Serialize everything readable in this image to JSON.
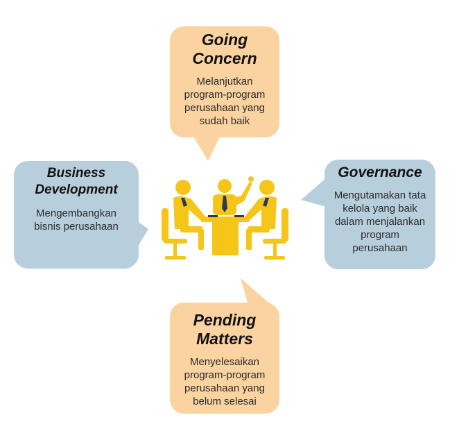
{
  "colors": {
    "orange_bubble": "#FAD3A1",
    "blue_bubble": "#B7CFDC",
    "figure_yellow": "#F5C518",
    "tie_dark": "#2E3A4A"
  },
  "center_icon": "business-meeting-icon",
  "nodes": {
    "top": {
      "title_line1": "Going",
      "title_line2": "Concern",
      "desc": [
        "Melanjutkan",
        "program-program",
        "perusahaan yang",
        "sudah baik"
      ]
    },
    "left": {
      "title_line1": "Business",
      "title_line2": "Development",
      "desc": [
        "Mengembangkan",
        "bisnis perusahaan"
      ]
    },
    "right": {
      "title_line1": "Governance",
      "desc": [
        "Mengutamakan tata",
        "kelola yang baik",
        "dalam menjalankan",
        "program",
        "perusahaan"
      ]
    },
    "bottom": {
      "title_line1": "Pending",
      "title_line2": "Matters",
      "desc": [
        "Menyelesaikan",
        "program-program",
        "perusahaan yang",
        "belum selesai"
      ]
    }
  }
}
